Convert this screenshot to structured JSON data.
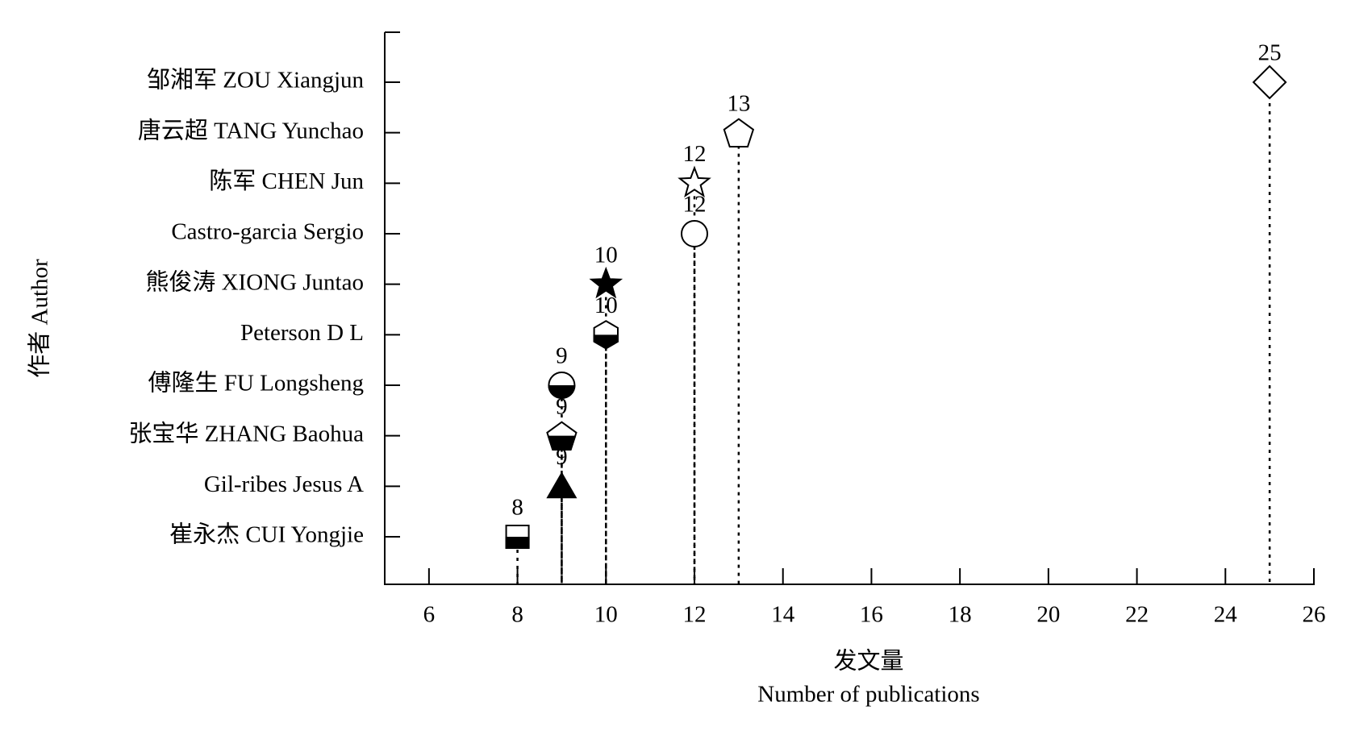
{
  "chart_data": {
    "type": "dot",
    "ylabel": "作者 Author",
    "xlabel": [
      "发文量",
      "Number of publications"
    ],
    "categories": [
      "邹湘军 ZOU Xiangjun",
      "唐云超 TANG Yunchao",
      "陈军 CHEN Jun",
      "Castro-garcia Sergio",
      "熊俊涛 XIONG Juntao",
      "Peterson D L",
      "傅隆生 FU Longsheng",
      "张宝华 ZHANG Baohua",
      "Gil-ribes Jesus A",
      "崔永杰 CUI Yongjie"
    ],
    "values": [
      25,
      13,
      12,
      12,
      10,
      10,
      9,
      9,
      9,
      8
    ],
    "markers": [
      "diamond",
      "pentagon",
      "star",
      "circle",
      "star-filled",
      "hexagon-half",
      "circle-half",
      "pentagon-half",
      "triangle-filled",
      "square-half"
    ],
    "color": "#000000",
    "xlim": [
      5,
      26
    ],
    "xticks": [
      6,
      8,
      10,
      12,
      14,
      16,
      18,
      20,
      22,
      24,
      26
    ]
  }
}
